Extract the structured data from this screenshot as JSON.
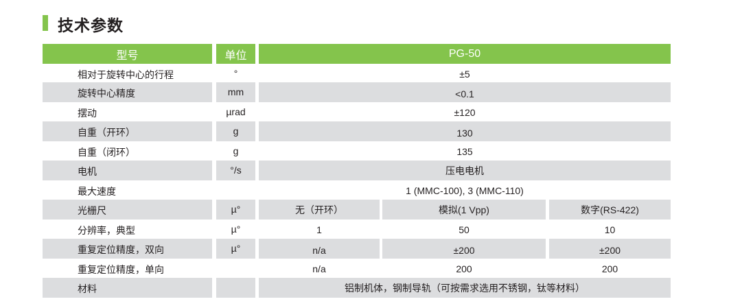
{
  "title": "技术参数",
  "colors": {
    "accent": "#84c44c",
    "row_alt": "#dcdddf"
  },
  "header": {
    "model": "型号",
    "unit": "单位",
    "value": "PG-50"
  },
  "rows": [
    {
      "label": "相对于旋转中心的行程",
      "unit": "°",
      "value": "±5"
    },
    {
      "label": "旋转中心精度",
      "unit": "mm",
      "value": "<0.1"
    },
    {
      "label": "摆动",
      "unit": "µrad",
      "value": "±120"
    },
    {
      "label": "自重（开环）",
      "unit": "g",
      "value": "130"
    },
    {
      "label": "自重（闭环）",
      "unit": "g",
      "value": "135"
    },
    {
      "label": "电机",
      "unit": "°/s",
      "value": "压电电机"
    },
    {
      "label": "最大速度",
      "unit": "",
      "value": "1 (MMC-100), 3 (MMC-110)"
    },
    {
      "label": "光栅尺",
      "unit": "µ°",
      "values": [
        "无（开环）",
        "模拟(1 Vpp)",
        "数字(RS-422)"
      ]
    },
    {
      "label": "分辨率，典型",
      "unit": "µ°",
      "values": [
        "1",
        "50",
        "10"
      ]
    },
    {
      "label": "重复定位精度，双向",
      "unit": "µ°",
      "values": [
        "n/a",
        "±200",
        "±200"
      ]
    },
    {
      "label": "重复定位精度，单向",
      "unit": "",
      "values": [
        "n/a",
        "200",
        "200"
      ]
    },
    {
      "label": "材料",
      "unit": "",
      "value": "铝制机体，钢制导轨（可按需求选用不锈钢，钛等材料）"
    }
  ]
}
